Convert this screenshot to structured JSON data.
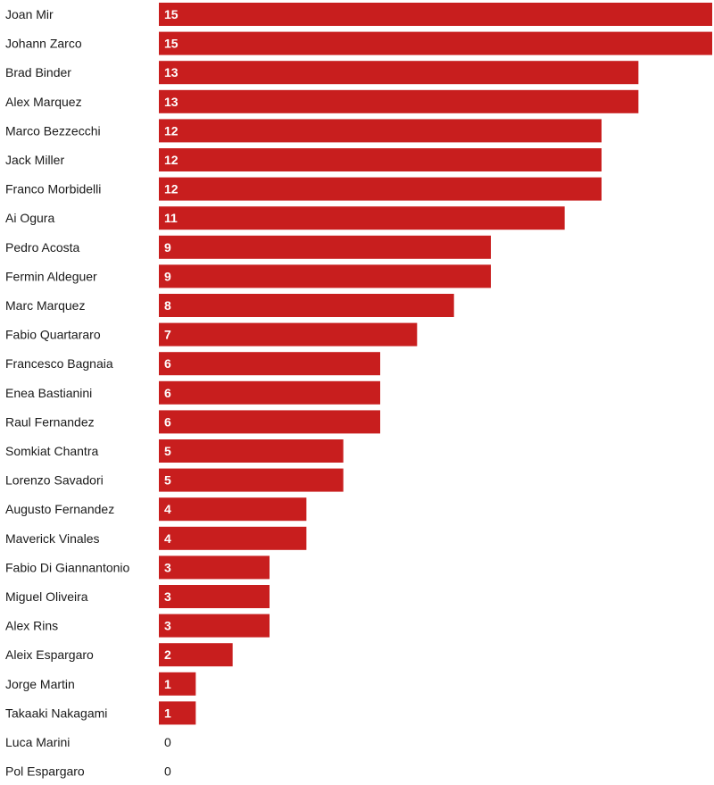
{
  "chart_data": {
    "type": "bar",
    "orientation": "horizontal",
    "title": "",
    "xlabel": "",
    "ylabel": "",
    "xlim": [
      0,
      15
    ],
    "grid": false,
    "bar_color": "#c81e1e",
    "categories": [
      "Joan Mir",
      "Johann Zarco",
      "Brad Binder",
      "Alex Marquez",
      "Marco Bezzecchi",
      "Jack Miller",
      "Franco Morbidelli",
      "Ai Ogura",
      "Pedro Acosta",
      "Fermin Aldeguer",
      "Marc Marquez",
      "Fabio Quartararo",
      "Francesco Bagnaia",
      "Enea Bastianini",
      "Raul Fernandez",
      "Somkiat Chantra",
      "Lorenzo Savadori",
      "Augusto Fernandez",
      "Maverick Vinales",
      "Fabio Di Giannantonio",
      "Miguel Oliveira",
      "Alex Rins",
      "Aleix Espargaro",
      "Jorge Martin",
      "Takaaki Nakagami",
      "Luca Marini",
      "Pol Espargaro"
    ],
    "values": [
      15,
      15,
      13,
      13,
      12,
      12,
      12,
      11,
      9,
      9,
      8,
      7,
      6,
      6,
      6,
      5,
      5,
      4,
      4,
      3,
      3,
      3,
      2,
      1,
      1,
      0,
      0
    ]
  }
}
